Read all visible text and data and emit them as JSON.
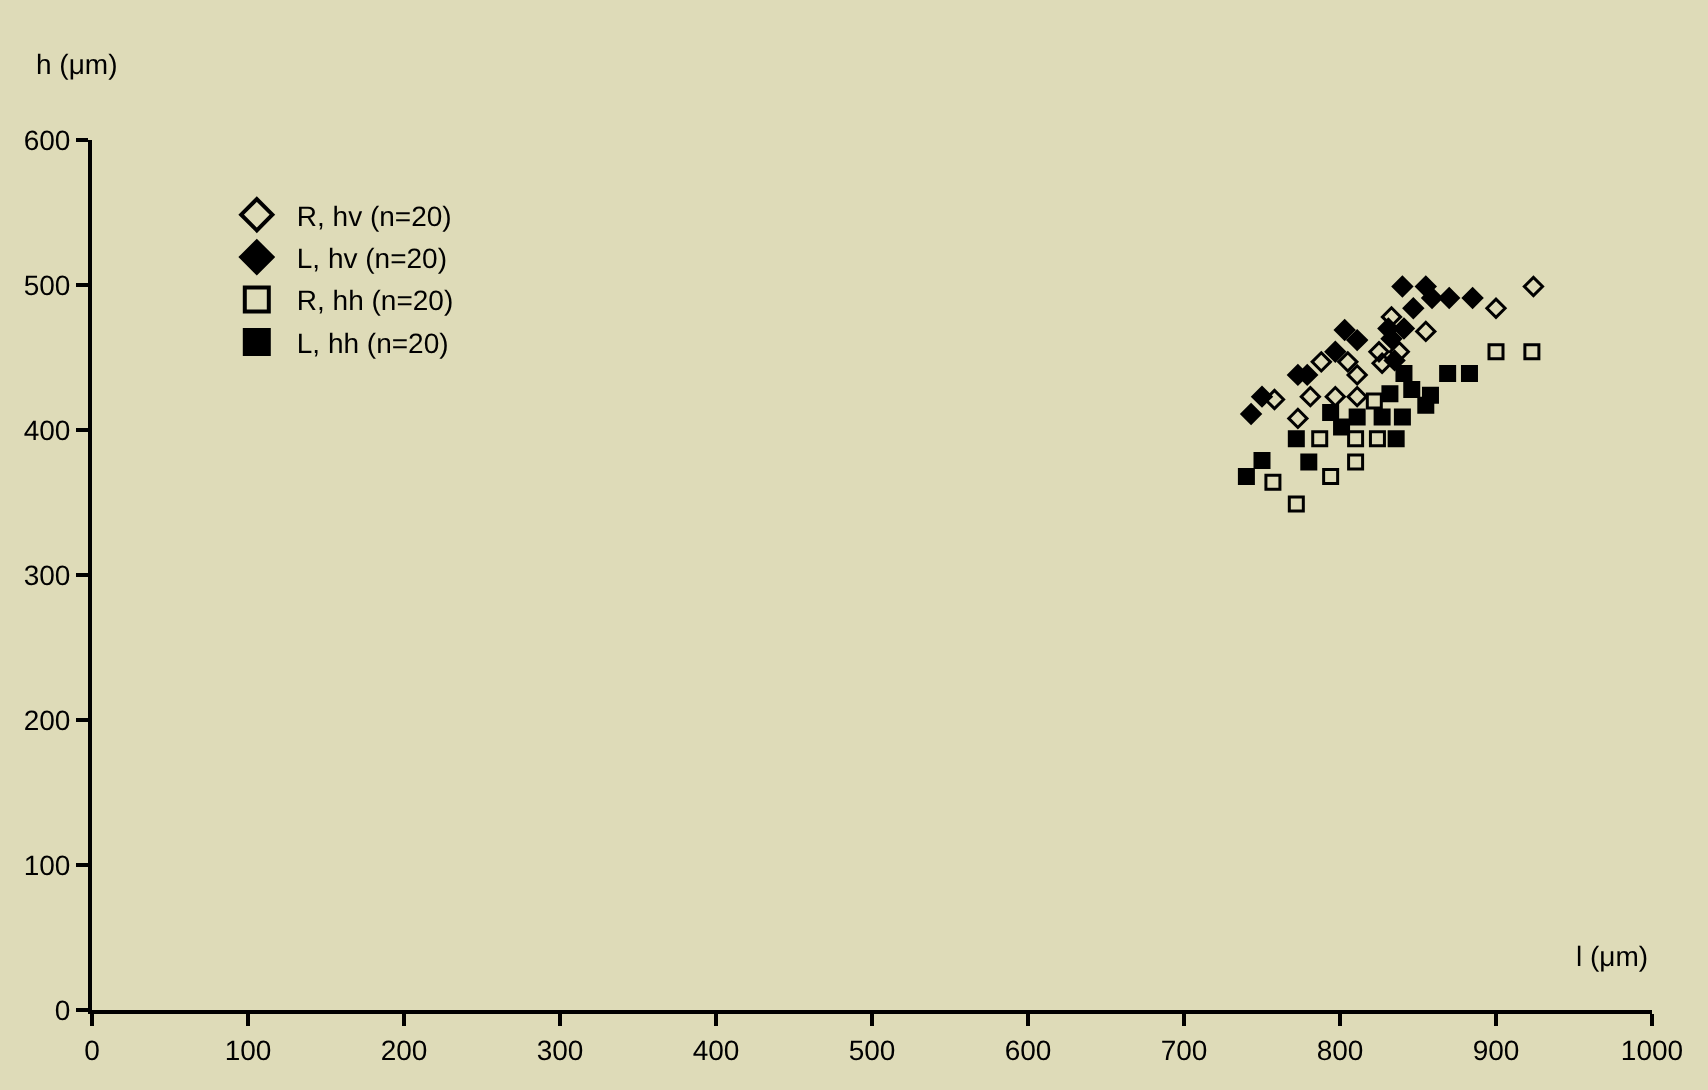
{
  "chart_data": {
    "type": "scatter",
    "xlabel": "l (μm)",
    "ylabel": "h (μm)",
    "xlim": [
      0,
      1000
    ],
    "ylim": [
      0,
      600
    ],
    "xticks": [
      0,
      100,
      200,
      300,
      400,
      500,
      600,
      700,
      800,
      900,
      1000
    ],
    "yticks": [
      0,
      100,
      200,
      300,
      400,
      500,
      600
    ],
    "grid": false,
    "legend": "top left",
    "series": [
      {
        "name": "R, hv (n=20)",
        "color": "#000000",
        "marker": "diamond",
        "x": [
          924,
          900,
          833,
          855,
          838,
          825,
          788,
          805,
          811,
          827,
          758,
          781,
          797,
          811,
          773
        ],
        "values": [
          499,
          484,
          478,
          468,
          454,
          454,
          447,
          447,
          438,
          446,
          421,
          423,
          423,
          423,
          408
        ]
      },
      {
        "name": "L, hv (n=20)",
        "color": "#000000",
        "marker": "diamond",
        "x": [
          840,
          855,
          859,
          870,
          885,
          847,
          831,
          803,
          811,
          833,
          797,
          835,
          773,
          779,
          750,
          743,
          841
        ],
        "values": [
          499,
          499,
          491,
          491,
          491,
          484,
          470,
          469,
          462,
          463,
          454,
          448,
          438,
          438,
          423,
          411,
          470
        ]
      },
      {
        "name": "R, hh (n=20)",
        "color": "#000000",
        "marker": "square",
        "x": [
          900,
          923,
          787,
          810,
          824,
          810,
          794,
          757,
          772,
          822
        ],
        "values": [
          454,
          454,
          394,
          394,
          394,
          378,
          368,
          364,
          349,
          420
        ]
      },
      {
        "name": "L, hh (n=20)",
        "color": "#000000",
        "marker": "square",
        "x": [
          841,
          869,
          883,
          832,
          846,
          858,
          855,
          794,
          811,
          827,
          840,
          801,
          772,
          836,
          780,
          750,
          740
        ],
        "values": [
          439,
          439,
          439,
          425,
          428,
          424,
          417,
          412,
          409,
          409,
          409,
          402,
          394,
          394,
          378,
          379,
          368
        ]
      }
    ]
  }
}
